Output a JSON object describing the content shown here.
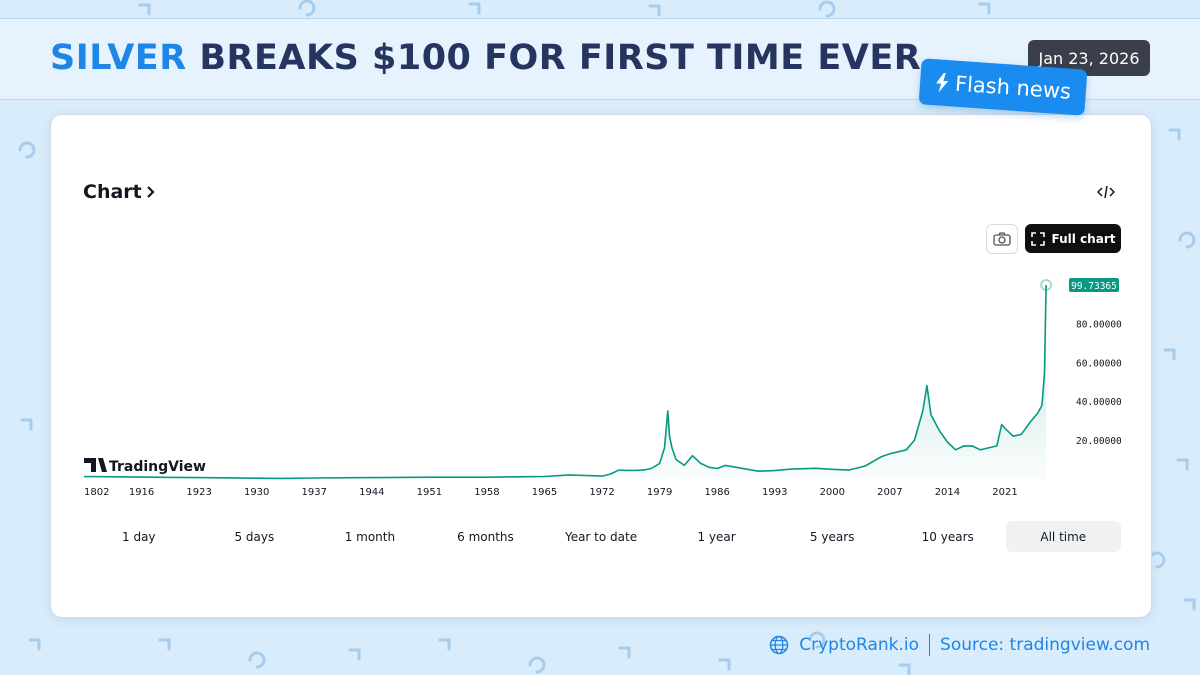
{
  "header": {
    "accent_word": "SILVER",
    "title_rest": " BREAKS $100 FOR FIRST TIME EVER",
    "date": "Jan 23, 2026",
    "flash_label": "Flash news"
  },
  "card": {
    "title": "Chart",
    "full_chart_label": "Full chart",
    "watermark": "TradingView",
    "ranges": [
      "1 day",
      "5 days",
      "1 month",
      "6 months",
      "Year to date",
      "1 year",
      "5 years",
      "10 years",
      "All time"
    ],
    "active_range": "All time"
  },
  "footer": {
    "brand": "CryptoRank.io",
    "source": "Source: tradingview.com"
  },
  "colors": {
    "accent": "#1e86e6",
    "navy": "#25355f",
    "line": "#089981",
    "price_badge": "#089981"
  },
  "chart_data": {
    "type": "area",
    "title": "",
    "xlabel": "",
    "ylabel": "",
    "x_ticks": [
      "1802",
      "1916",
      "1923",
      "1930",
      "1937",
      "1944",
      "1951",
      "1958",
      "1965",
      "1972",
      "1979",
      "1986",
      "1993",
      "2000",
      "2007",
      "2014",
      "2021"
    ],
    "y_ticks": [
      "20.00000",
      "40.00000",
      "60.00000",
      "80.00000"
    ],
    "ylim": [
      0,
      110
    ],
    "last_price": "99.73365",
    "grid": false,
    "series": [
      {
        "x": [
          "1802",
          "1916",
          "1920",
          "1923",
          "1930",
          "1933",
          "1937",
          "1944",
          "1951",
          "1958",
          "1963",
          "1965",
          "1968",
          "1972",
          "1973",
          "1974",
          "1975",
          "1976",
          "1977",
          "1978",
          "1979",
          "1979.6",
          "1980",
          "1980.2",
          "1980.5",
          "1981",
          "1982",
          "1983",
          "1984",
          "1985",
          "1986",
          "1987",
          "1989",
          "1991",
          "1993",
          "1995",
          "1998",
          "2000",
          "2002",
          "2004",
          "2006",
          "2007",
          "2008",
          "2009",
          "2010",
          "2011",
          "2011.5",
          "2012",
          "2013",
          "2014",
          "2015",
          "2016",
          "2017",
          "2018",
          "2019",
          "2020",
          "2020.6",
          "2021",
          "2022",
          "2023",
          "2024",
          "2025",
          "2025.5",
          "2025.8",
          "2026"
        ],
        "values": [
          1.3,
          1.0,
          0.8,
          0.7,
          0.4,
          0.3,
          0.5,
          0.7,
          0.9,
          0.9,
          1.2,
          1.3,
          2.1,
          1.5,
          2.5,
          4.5,
          4.4,
          4.4,
          4.6,
          5.4,
          8.0,
          16,
          35,
          22,
          16,
          10,
          7,
          12,
          8,
          6,
          5.4,
          7.0,
          5.5,
          4.0,
          4.3,
          5.1,
          5.5,
          5.0,
          4.6,
          6.7,
          11.5,
          13,
          14,
          15,
          20,
          35,
          48,
          33,
          25,
          19,
          15,
          17,
          17,
          15,
          16,
          17,
          28,
          26,
          22,
          23,
          29,
          34,
          38,
          55,
          99.73
        ]
      }
    ]
  }
}
